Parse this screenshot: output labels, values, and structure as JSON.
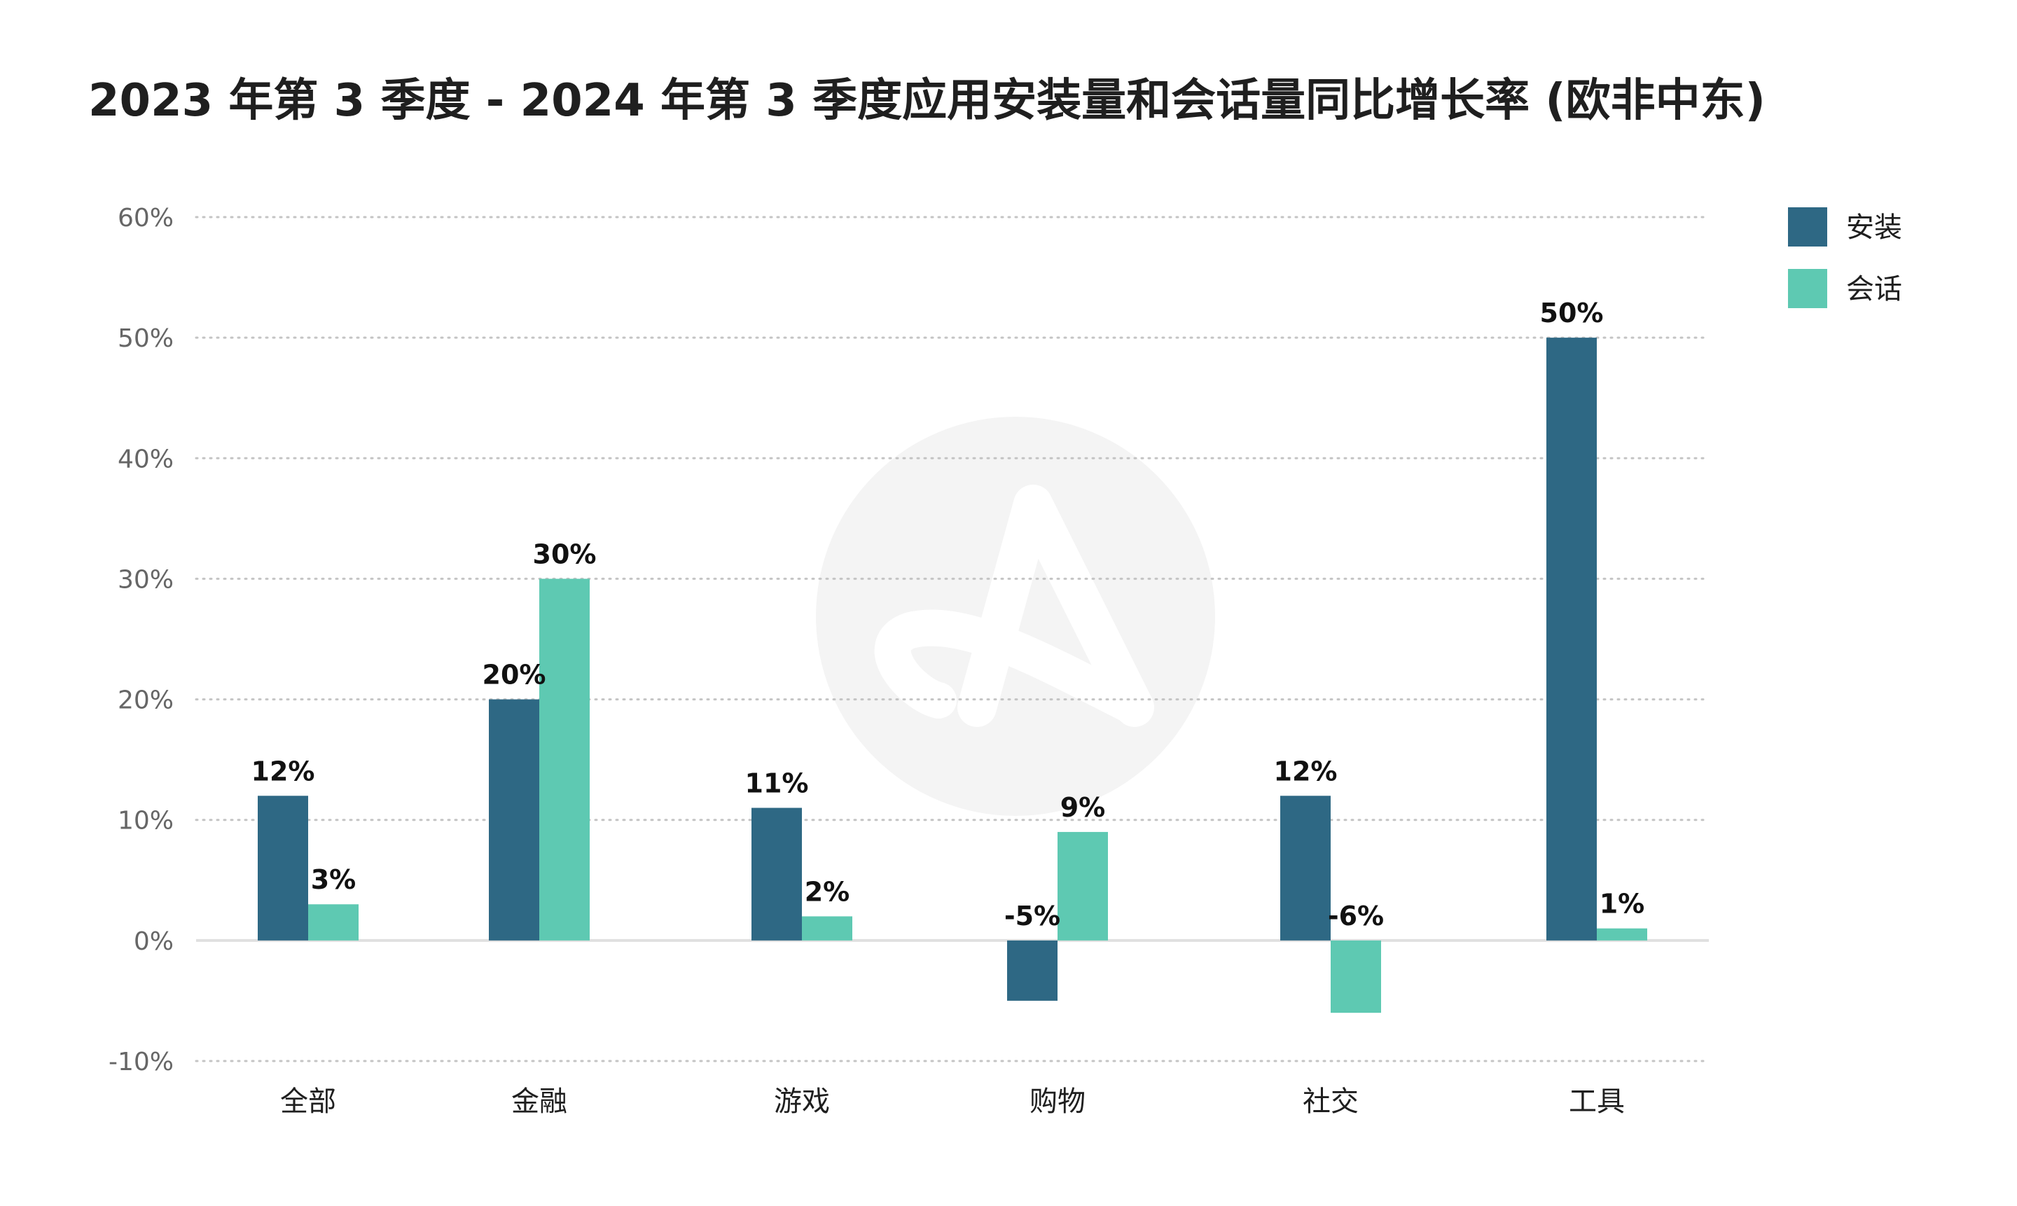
{
  "chart_data": {
    "type": "bar",
    "title": "2023 年第 3 季度 - 2024 年第 3 季度应用安装量和会话量同比增长率 (欧非中东)",
    "xlabel": "",
    "ylabel": "",
    "ylim": [
      -10,
      60
    ],
    "yticks": [
      60,
      50,
      40,
      30,
      20,
      10,
      0,
      -10
    ],
    "ytick_labels": [
      "60%",
      "50%",
      "40%",
      "30%",
      "20%",
      "10%",
      "0%",
      "-10%"
    ],
    "grid": true,
    "legend_position": "top-right",
    "categories": [
      "全部",
      "金融",
      "游戏",
      "购物",
      "社交",
      "工具"
    ],
    "series": [
      {
        "name": "安装",
        "color": "#2e6884",
        "values": [
          12,
          20,
          11,
          -5,
          12,
          50
        ],
        "labels": [
          "12%",
          "20%",
          "11%",
          "-5%",
          "12%",
          "50%"
        ]
      },
      {
        "name": "会话",
        "color": "#5ec9b2",
        "values": [
          3,
          30,
          2,
          9,
          -6,
          1
        ],
        "labels": [
          "3%",
          "30%",
          "2%",
          "9%",
          "-6%",
          "1%"
        ]
      }
    ]
  }
}
